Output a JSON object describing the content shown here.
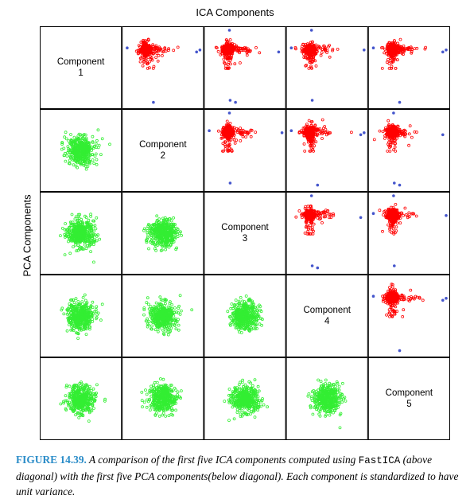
{
  "title": "ICA Components",
  "ylabel": "PCA Components",
  "caption": {
    "figure": "FIGURE 14.39.",
    "text_1": " A comparison of the first five ICA components computed using ",
    "code": "FastICA",
    "text_2": " (above diagonal) with the first five PCA components(below diagonal). Each component is standardized to have unit variance."
  },
  "colors": {
    "ica": "#ff0000",
    "pca": "#33ee33",
    "outlier": "#4455cc",
    "frame": "#000000"
  },
  "chart_data": {
    "type": "scatter",
    "layout": "scatterplot-matrix",
    "n": 5,
    "diagonal_labels": [
      [
        "Component",
        "1"
      ],
      [
        "Component",
        "2"
      ],
      [
        "Component",
        "3"
      ],
      [
        "Component",
        "4"
      ],
      [
        "Component",
        "5"
      ]
    ],
    "upper_triangle": "ICA components (red, heavy-tailed clusters with blue outlier points)",
    "lower_triangle": "PCA components (green, roughly Gaussian blobs)",
    "axis_range": [
      -3,
      8
    ],
    "ica_center": [
      0,
      0
    ],
    "outlier_points": [
      [
        7.5,
        0.4
      ],
      [
        8.0,
        0.1
      ],
      [
        0.3,
        7.5
      ],
      [
        1.1,
        7.8
      ],
      [
        -2.8,
        -0.2
      ],
      [
        0.2,
        -2.9
      ]
    ],
    "points_per_panel": 420
  }
}
